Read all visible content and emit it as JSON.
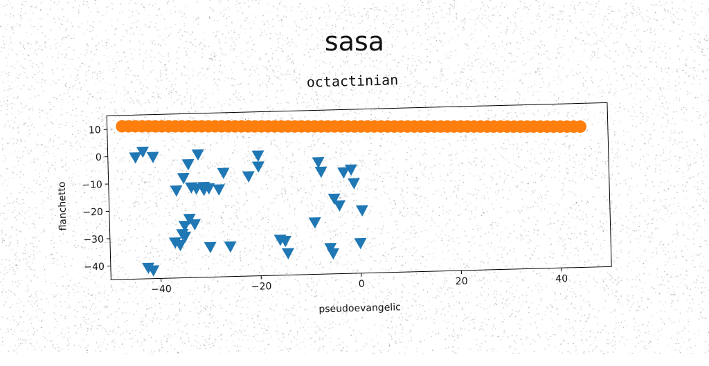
{
  "suptitle": "sasa",
  "chart_data": {
    "type": "scatter",
    "title": "octactinian",
    "xlabel": "pseudoevangelic",
    "ylabel": "flanchetto",
    "xlim": [
      -50,
      50
    ],
    "ylim": [
      -45,
      15
    ],
    "xticks": [
      -40,
      -20,
      0,
      20,
      40
    ],
    "yticks": [
      10,
      0,
      -10,
      -20,
      -30,
      -40
    ],
    "grid": false,
    "legend": "none",
    "series": [
      {
        "marker": "triangle-down",
        "color": "#1f77b4",
        "points": [
          [
            -44.5,
            -0.5
          ],
          [
            -43,
            1.5
          ],
          [
            -41,
            -0.5
          ],
          [
            -42.5,
            -41
          ],
          [
            -41.5,
            -42
          ],
          [
            -34,
            -3.5
          ],
          [
            -35,
            -8.5
          ],
          [
            -36.5,
            -13
          ],
          [
            -33.5,
            -12
          ],
          [
            -32.5,
            -12.5
          ],
          [
            -31,
            -12
          ],
          [
            -31,
            -13
          ],
          [
            -30,
            -12.5
          ],
          [
            -28,
            -13
          ],
          [
            -32,
            0
          ],
          [
            -27,
            -7
          ],
          [
            -22,
            -8.5
          ],
          [
            -20,
            -1
          ],
          [
            -20,
            -5
          ],
          [
            -35,
            -26
          ],
          [
            -34,
            -23.5
          ],
          [
            -33,
            -25.5
          ],
          [
            -35.5,
            -29
          ],
          [
            -35,
            -30
          ],
          [
            -37,
            -32
          ],
          [
            -36,
            -33
          ],
          [
            -30,
            -34
          ],
          [
            -26,
            -34
          ],
          [
            -16,
            -32
          ],
          [
            -15,
            -32.5
          ],
          [
            -14.5,
            -37
          ],
          [
            -9,
            -26
          ],
          [
            -7.5,
            -7.5
          ],
          [
            -8,
            -4
          ],
          [
            -6,
            -35.5
          ],
          [
            -5.5,
            -37.5
          ],
          [
            -5,
            -17.5
          ],
          [
            -4,
            -20
          ],
          [
            -3,
            -8
          ],
          [
            -1.5,
            -7
          ],
          [
            -1,
            -12
          ],
          [
            0.5,
            -22
          ],
          [
            0,
            -34
          ]
        ]
      },
      {
        "marker": "circle",
        "color": "#ff7f0e",
        "line": {
          "x": [
            -47,
            44.5
          ],
          "y": [
            11,
            6.5
          ],
          "count": 70
        }
      }
    ]
  }
}
